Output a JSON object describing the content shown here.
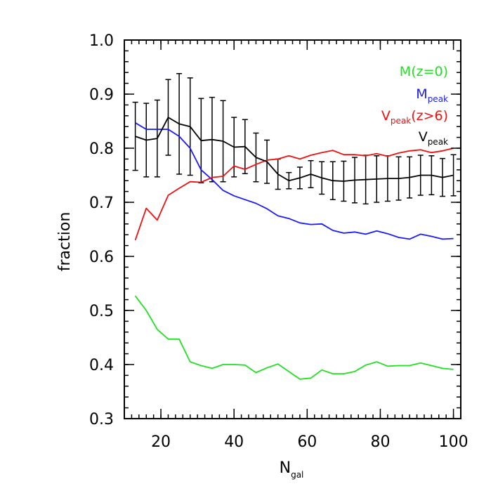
{
  "chart_data": {
    "type": "line",
    "xlabel_main": "N",
    "xlabel_sub": "gal",
    "ylabel": "fraction",
    "xlim": [
      10,
      102
    ],
    "ylim": [
      0.3,
      1.0
    ],
    "xticks": [
      20,
      40,
      60,
      80,
      100
    ],
    "xtick_labels": [
      "20",
      "40",
      "60",
      "80",
      "100"
    ],
    "yticks": [
      0.3,
      0.4,
      0.5,
      0.6,
      0.7,
      0.8,
      0.9,
      1.0
    ],
    "ytick_labels": [
      "0.3",
      "0.4",
      "0.5",
      "0.6",
      "0.7",
      "0.8",
      "0.9",
      "1.0"
    ],
    "grid": false,
    "legend_position": "top-right",
    "x": [
      13,
      16,
      19,
      22,
      25,
      28,
      31,
      34,
      37,
      40,
      43,
      46,
      49,
      52,
      55,
      58,
      61,
      64,
      67,
      70,
      73,
      76,
      79,
      82,
      85,
      88,
      91,
      94,
      97,
      100
    ],
    "series": [
      {
        "key": "mz0",
        "name_main": "M(z=0)",
        "name_sub": "",
        "name_suffix": "",
        "color": "#22e022",
        "values": [
          0.527,
          0.5,
          0.465,
          0.447,
          0.447,
          0.405,
          0.398,
          0.393,
          0.4,
          0.4,
          0.399,
          0.385,
          0.394,
          0.401,
          0.387,
          0.373,
          0.375,
          0.39,
          0.383,
          0.383,
          0.387,
          0.399,
          0.405,
          0.397,
          0.398,
          0.398,
          0.403,
          0.398,
          0.393,
          0.391
        ]
      },
      {
        "key": "mpeak",
        "name_main": "M",
        "name_sub": "peak",
        "name_suffix": "",
        "color": "#1a1aff",
        "values": [
          0.847,
          0.835,
          0.835,
          0.835,
          0.822,
          0.8,
          0.76,
          0.742,
          0.722,
          0.712,
          0.705,
          0.698,
          0.688,
          0.675,
          0.67,
          0.662,
          0.659,
          0.66,
          0.648,
          0.643,
          0.645,
          0.641,
          0.647,
          0.642,
          0.635,
          0.632,
          0.641,
          0.637,
          0.632,
          0.633
        ]
      },
      {
        "key": "vpeak_z6",
        "name_main": "V",
        "name_sub": "peak",
        "name_suffix": "(z>6)",
        "color": "#ee1111",
        "values": [
          0.63,
          0.689,
          0.667,
          0.713,
          0.726,
          0.738,
          0.737,
          0.746,
          0.748,
          0.767,
          0.761,
          0.77,
          0.778,
          0.78,
          0.786,
          0.78,
          0.787,
          0.792,
          0.796,
          0.788,
          0.788,
          0.786,
          0.79,
          0.785,
          0.791,
          0.795,
          0.797,
          0.792,
          0.795,
          0.8
        ]
      },
      {
        "key": "vpeak",
        "name_main": "V",
        "name_sub": "peak",
        "name_suffix": "",
        "color": "#000000",
        "values": [
          0.822,
          0.815,
          0.818,
          0.857,
          0.845,
          0.84,
          0.814,
          0.816,
          0.813,
          0.802,
          0.803,
          0.783,
          0.775,
          0.752,
          0.74,
          0.745,
          0.752,
          0.745,
          0.74,
          0.739,
          0.741,
          0.742,
          0.743,
          0.744,
          0.744,
          0.746,
          0.75,
          0.75,
          0.746,
          0.75
        ],
        "errors": [
          0.063,
          0.068,
          0.071,
          0.07,
          0.093,
          0.09,
          0.078,
          0.078,
          0.075,
          0.055,
          0.05,
          0.045,
          0.04,
          0.028,
          0.015,
          0.02,
          0.025,
          0.03,
          0.035,
          0.037,
          0.042,
          0.045,
          0.043,
          0.042,
          0.04,
          0.038,
          0.037,
          0.036,
          0.035,
          0.038
        ]
      }
    ]
  }
}
